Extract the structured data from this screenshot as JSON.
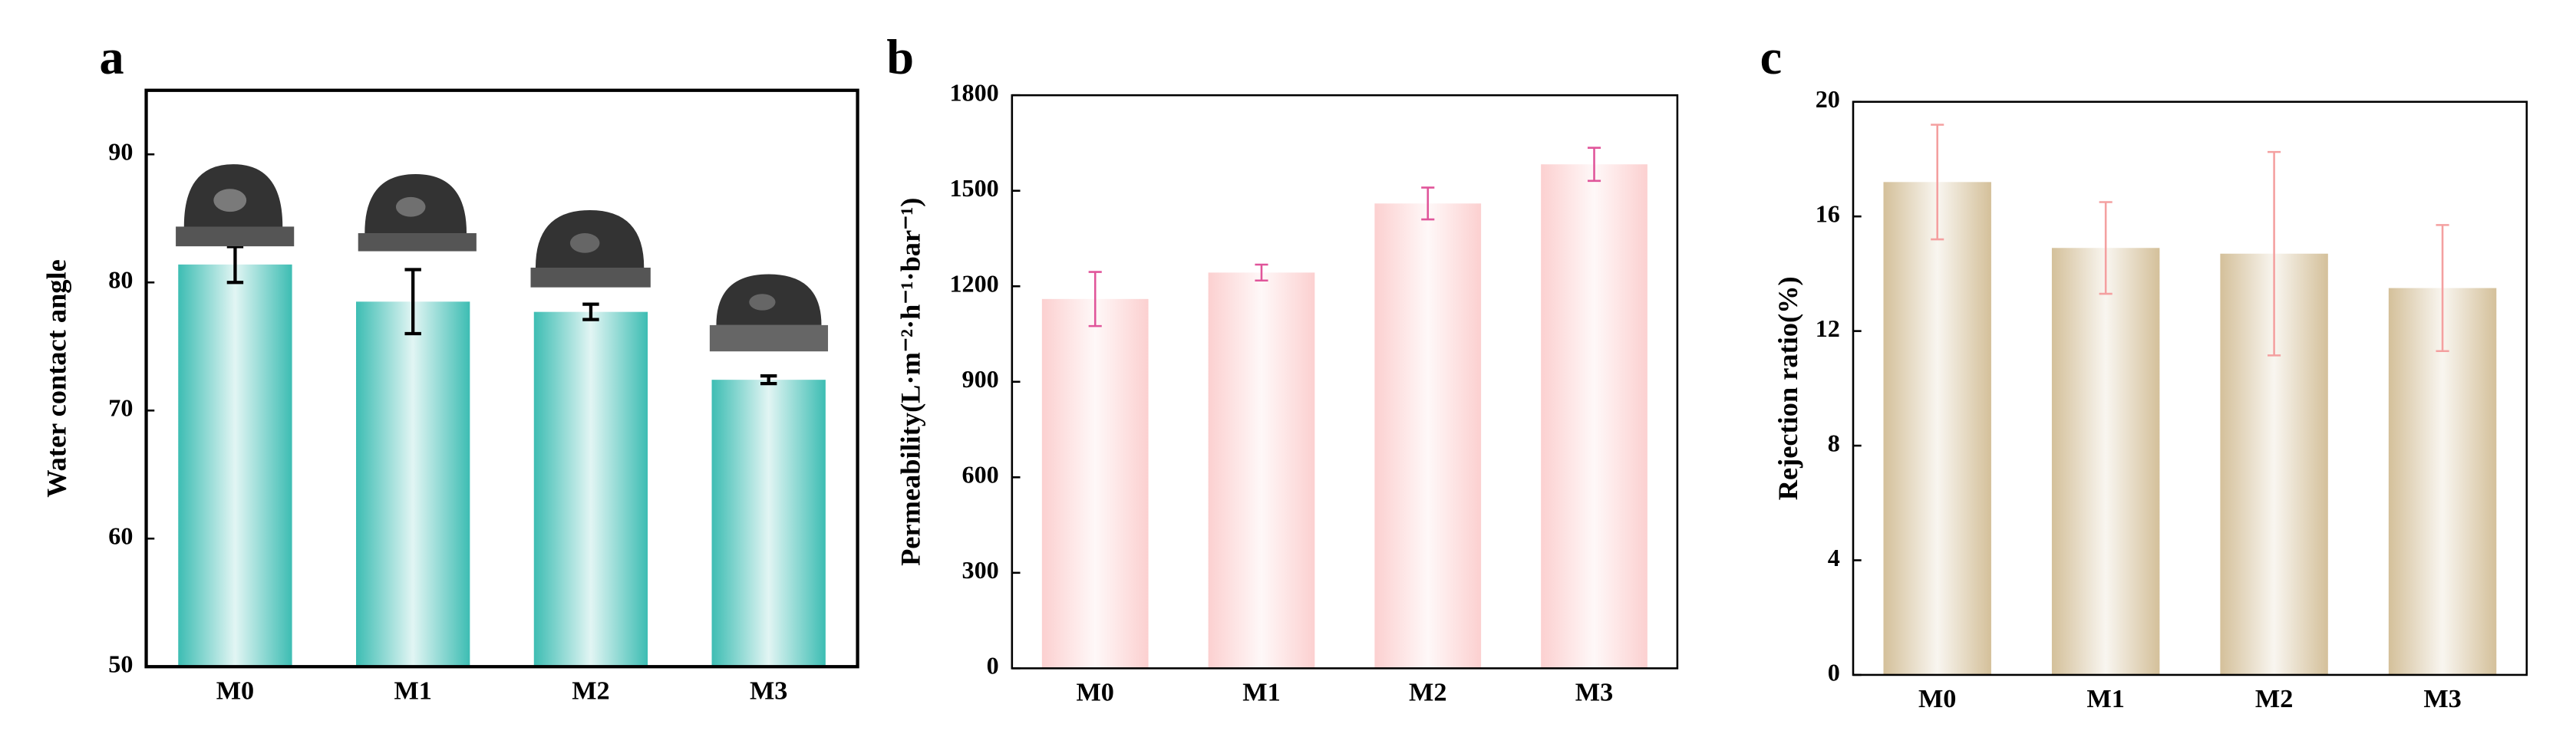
{
  "chart_data": [
    {
      "type": "bar",
      "panel_label": "a",
      "ylabel": "Water contact angle",
      "categories": [
        "M0",
        "M1",
        "M2",
        "M3"
      ],
      "values": [
        81.4,
        78.5,
        77.7,
        72.4
      ],
      "errors": [
        1.4,
        2.5,
        0.6,
        0.3
      ],
      "color": "#3dbdb3",
      "error_color": "#000000",
      "ylim": [
        50,
        95
      ],
      "yticks": [
        50,
        60,
        70,
        80,
        90
      ]
    },
    {
      "type": "bar",
      "panel_label": "b",
      "ylabel": "Permeability(L·m⁻²·h⁻¹·bar⁻¹)",
      "categories": [
        "M0",
        "M1",
        "M2",
        "M3"
      ],
      "values": [
        1160,
        1243,
        1460,
        1583
      ],
      "errors": [
        85,
        25,
        50,
        52
      ],
      "color": "#fcd0d0",
      "error_color": "#e0559a",
      "ylim": [
        0,
        1800
      ],
      "yticks": [
        0,
        300,
        600,
        900,
        1200,
        1500,
        1800
      ]
    },
    {
      "type": "bar",
      "panel_label": "c",
      "ylabel": "Rejection ratio(%)",
      "categories": [
        "M0",
        "M1",
        "M2",
        "M3"
      ],
      "values": [
        17.2,
        14.9,
        14.7,
        13.5
      ],
      "errors": [
        2.0,
        1.6,
        3.55,
        2.2
      ],
      "color": "#d4c09a",
      "error_color": "#f4a0a0",
      "ylim": [
        0,
        20
      ],
      "yticks": [
        0,
        4,
        8,
        12,
        16,
        20
      ]
    }
  ]
}
